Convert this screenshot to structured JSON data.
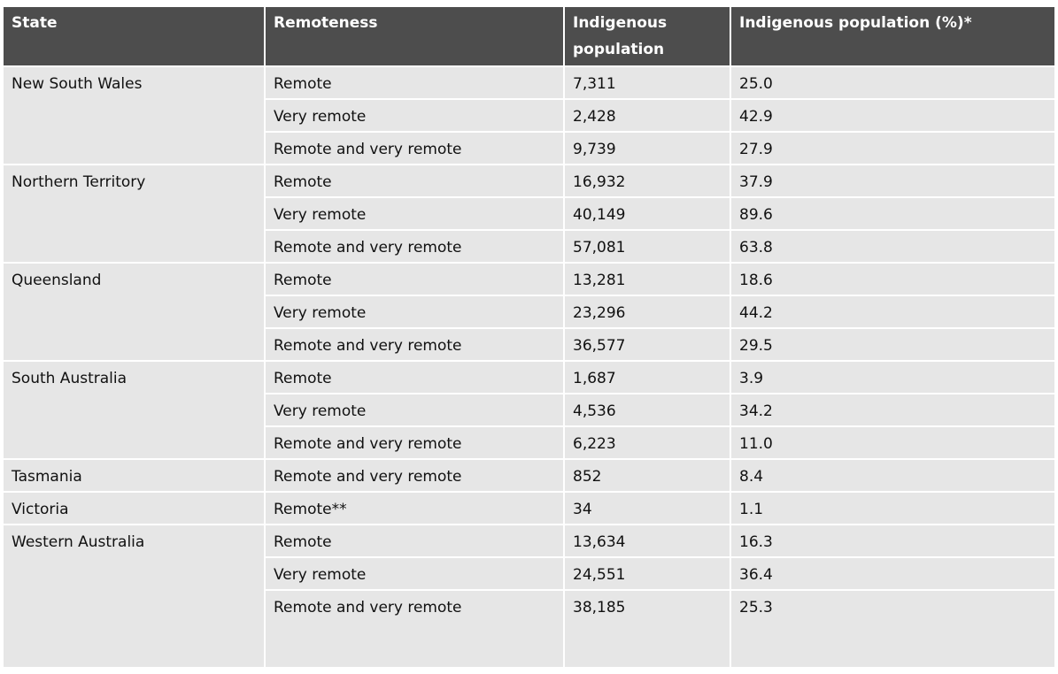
{
  "table": {
    "header": [
      "State",
      "Remoteness",
      "Indigenous population",
      "Indigenous population (%)*"
    ],
    "groups": [
      {
        "state": "New South Wales",
        "rows": [
          [
            "Remote",
            "7,311",
            "25.0"
          ],
          [
            "Very remote",
            "2,428",
            "42.9"
          ],
          [
            "Remote and very remote",
            "9,739",
            "27.9"
          ]
        ]
      },
      {
        "state": "Northern Territory",
        "rows": [
          [
            "Remote",
            "16,932",
            "37.9"
          ],
          [
            "Very remote",
            "40,149",
            "89.6"
          ],
          [
            "Remote and very remote",
            "57,081",
            "63.8"
          ]
        ]
      },
      {
        "state": "Queensland",
        "rows": [
          [
            "Remote",
            "13,281",
            "18.6"
          ],
          [
            "Very remote",
            "23,296",
            "44.2"
          ],
          [
            "Remote and very remote",
            "36,577",
            "29.5"
          ]
        ]
      },
      {
        "state": "South Australia",
        "rows": [
          [
            "Remote",
            "1,687",
            "3.9"
          ],
          [
            "Very remote",
            "4,536",
            "34.2"
          ],
          [
            "Remote and very remote",
            "6,223",
            "11.0"
          ]
        ]
      },
      {
        "state": "Tasmania",
        "rows": [
          [
            "Remote and very remote",
            "852",
            "8.4"
          ]
        ]
      },
      {
        "state": "Victoria",
        "rows": [
          [
            "Remote**",
            "34",
            "1.1"
          ]
        ]
      },
      {
        "state": "Western Australia",
        "rows": [
          [
            "Remote",
            "13,634",
            "16.3"
          ],
          [
            "Very remote",
            "24,551",
            "36.4"
          ],
          [
            "Remote and very remote",
            "38,185",
            "25.3"
          ]
        ]
      }
    ]
  }
}
